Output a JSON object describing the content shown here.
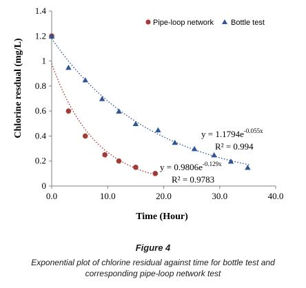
{
  "figure": {
    "title": "Figure 4",
    "caption": "Exponential plot of chlorine residual against time for bottle test and corresponding pipe-loop network test"
  },
  "colors": {
    "pipe_loop": "#a33a36",
    "bottle": "#2f5597",
    "axis": "#7f7f7f"
  },
  "chart_data": {
    "type": "scatter",
    "xlabel": "Time (Hour)",
    "ylabel": "Chlorine resdual (mg/L)",
    "xlim": [
      0,
      40
    ],
    "ylim": [
      0,
      1.4
    ],
    "xticks": [
      "0.0",
      "10.0",
      "20.0",
      "30.0",
      "40.0"
    ],
    "yticks": [
      "0",
      "0.2",
      "0.4",
      "0.6",
      "0.8",
      "1",
      "1.2",
      "1.4"
    ],
    "grid": false,
    "legend_position": "top-right",
    "series": [
      {
        "name": "Pipe-loop network",
        "marker": "circle",
        "x": [
          0,
          3,
          6,
          9.5,
          12,
          15,
          18.5
        ],
        "y": [
          1.2,
          0.6,
          0.4,
          0.25,
          0.2,
          0.15,
          0.1
        ],
        "trendline": {
          "a": 0.9806,
          "b": -0.129,
          "x_range": [
            0,
            19
          ]
        },
        "equation": {
          "prefix": "y = 0.9806e",
          "exp": "-0.129x",
          "r2": "R² = 0.9783"
        }
      },
      {
        "name": "Bottle test",
        "marker": "triangle",
        "x": [
          0,
          3,
          6,
          9,
          12,
          15,
          19,
          22,
          25.5,
          29,
          32,
          35
        ],
        "y": [
          1.2,
          0.95,
          0.85,
          0.7,
          0.6,
          0.5,
          0.45,
          0.35,
          0.3,
          0.25,
          0.2,
          0.15
        ],
        "trendline": {
          "a": 1.1794,
          "b": -0.055,
          "x_range": [
            0,
            35.5
          ]
        },
        "equation": {
          "prefix": "y = 1.1794e",
          "exp": "-0.055x",
          "r2": "R² = 0.994"
        }
      }
    ]
  }
}
